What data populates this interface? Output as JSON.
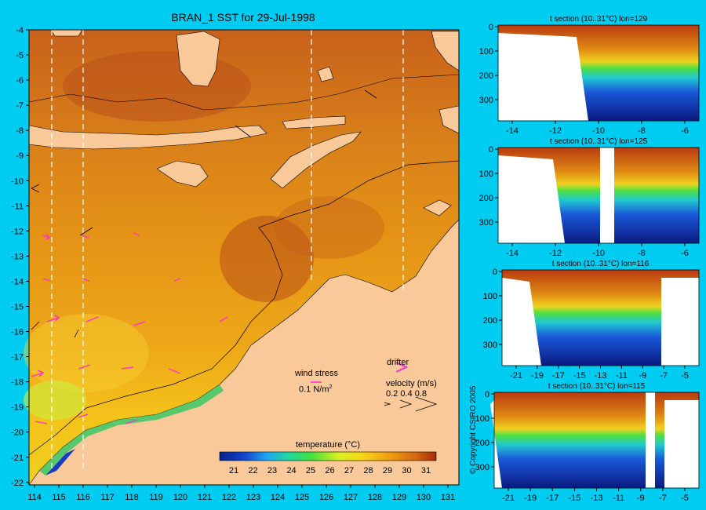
{
  "main_map": {
    "title": "BRAN_1 SST for 29-Jul-1998",
    "lat_ticks": [
      "-4",
      "-5",
      "-6",
      "-7",
      "-8",
      "-9",
      "-10",
      "-11",
      "-12",
      "-13",
      "-14",
      "-15",
      "-16",
      "-17",
      "-18",
      "-19",
      "-20",
      "-21",
      "-22"
    ],
    "lon_ticks": [
      "114",
      "115",
      "116",
      "117",
      "118",
      "119",
      "120",
      "121",
      "122",
      "123",
      "124",
      "125",
      "126",
      "127",
      "128",
      "129",
      "130",
      "131"
    ],
    "colorbar": {
      "label": "temperature (°C)",
      "ticks": [
        "21",
        "22",
        "23",
        "24",
        "25",
        "26",
        "27",
        "28",
        "29",
        "30",
        "31"
      ]
    },
    "wind_stress": {
      "label": "wind stress",
      "scale": "0.1 N/m"
    },
    "drifter": {
      "label": "drifter"
    },
    "velocity": {
      "label": "velocity (m/s)",
      "scale": "0.2 0.4 0.8"
    },
    "colors": {
      "land": "#f9c99a",
      "sea_warm": "#d26e14",
      "sea_mid": "#f0a818",
      "sea_cool": "#9fe020",
      "arrow": "#ff30d0"
    }
  },
  "sections": [
    {
      "title": "t section (10..31°C) lon=129",
      "y_ticks": [
        "0",
        "100",
        "200",
        "300"
      ],
      "x_ticks": [
        "-14",
        "-12",
        "-10",
        "-8",
        "-6"
      ]
    },
    {
      "title": "t section (10..31°C) lon=125",
      "y_ticks": [
        "0",
        "100",
        "200",
        "300"
      ],
      "x_ticks": [
        "-14",
        "-12",
        "-10",
        "-8",
        "-6"
      ]
    },
    {
      "title": "t section (10..31°C) lon=116",
      "y_ticks": [
        "0",
        "100",
        "200",
        "300"
      ],
      "x_ticks": [
        "-21",
        "-19",
        "-17",
        "-15",
        "-13",
        "-11",
        "-9",
        "-7",
        "-5"
      ]
    },
    {
      "title": "t section (10..31°C) lon=115",
      "y_ticks": [
        "0",
        "100",
        "200",
        "300"
      ],
      "x_ticks": [
        "-21",
        "-19",
        "-17",
        "-15",
        "-13",
        "-11",
        "-9",
        "-7",
        "-5"
      ]
    }
  ],
  "copyright": "© Copyright CSIRO 2005"
}
